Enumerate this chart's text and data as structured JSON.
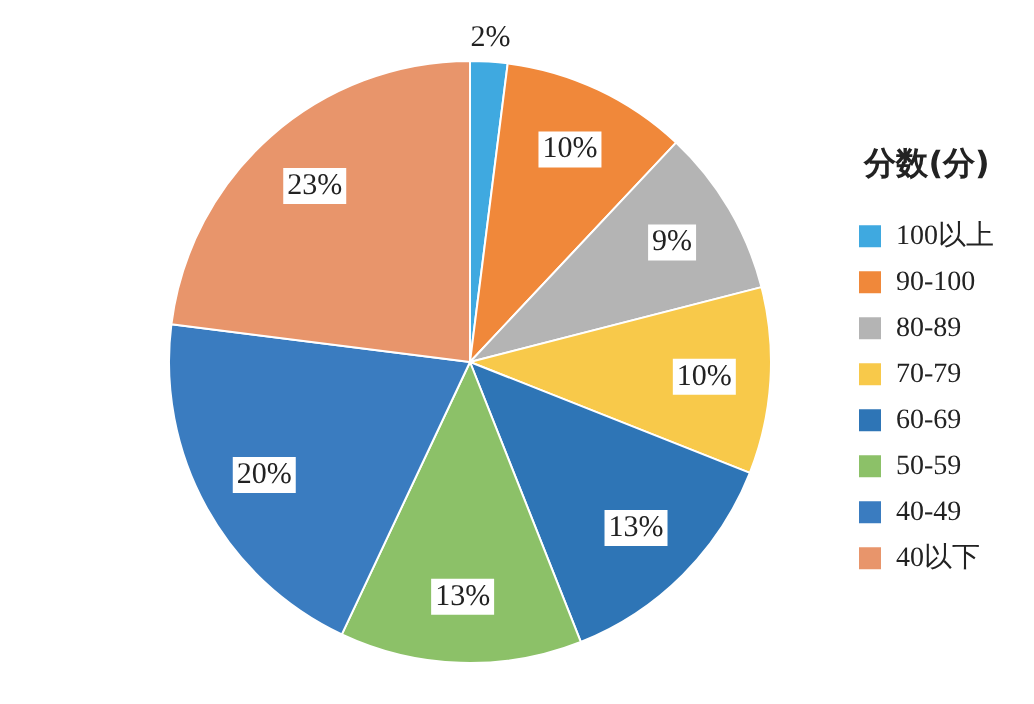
{
  "chart_data": {
    "type": "pie",
    "legend_title": "分数(分)",
    "legend": "right",
    "categories": [
      "100以上",
      "90-100",
      "80-89",
      "70-79",
      "60-69",
      "50-59",
      "40-49",
      "40以下"
    ],
    "values": [
      2,
      10,
      9,
      10,
      13,
      13,
      20,
      23
    ],
    "colors": [
      "#3fa9e0",
      "#f0883a",
      "#b4b4b4",
      "#f8c94a",
      "#2e75b6",
      "#8cc168",
      "#3a7cc0",
      "#e8956b"
    ],
    "value_labels": [
      "2%",
      "10%",
      "9%",
      "10%",
      "13%",
      "13%",
      "20%",
      "23%"
    ]
  }
}
